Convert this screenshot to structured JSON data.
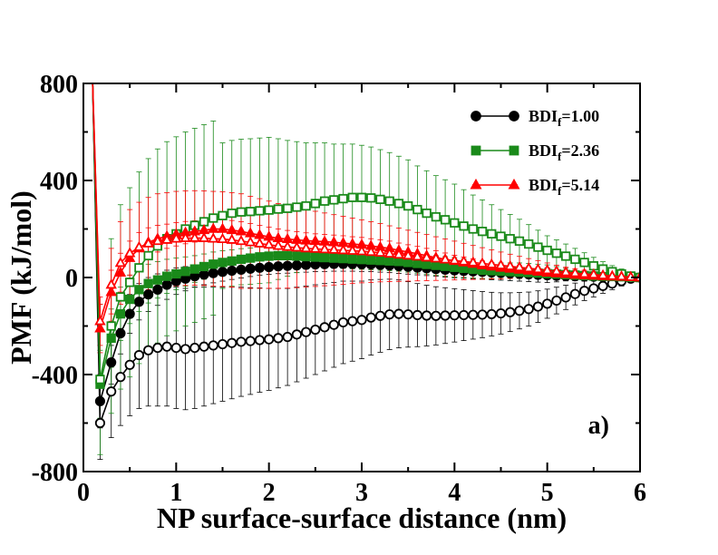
{
  "chart_data": {
    "type": "line",
    "xlabel": "NP surface-surface distance (nm)",
    "ylabel": "PMF (kJ/mol)",
    "xlim": [
      0,
      6
    ],
    "ylim": [
      -800,
      800
    ],
    "xticks": [
      "0",
      "1",
      "2",
      "3",
      "4",
      "5",
      "6"
    ],
    "yticks": [
      "-800",
      "-400",
      "0",
      "400",
      "800"
    ],
    "panel_label": "a)",
    "legend_position": "top-right",
    "legend": [
      {
        "prefix": "BDI",
        "sub": "f",
        "suffix": "=1.00",
        "color": "#000000",
        "marker": "circle"
      },
      {
        "prefix": "BDI",
        "sub": "f",
        "suffix": "=2.36",
        "color": "#1a8a1a",
        "marker": "square"
      },
      {
        "prefix": "BDI",
        "sub": "f",
        "suffix": "=5.14",
        "color": "#ff0000",
        "marker": "triangle"
      }
    ],
    "series": [
      {
        "name": "BDIf=1.00",
        "color": "#000000",
        "marker": "circle",
        "fill": "filled",
        "x": [
          0.1,
          0.18,
          0.3,
          0.4,
          0.5,
          0.6,
          0.7,
          0.8,
          0.9,
          1.0,
          1.1,
          1.2,
          1.3,
          1.4,
          1.5,
          1.6,
          1.7,
          1.8,
          1.9,
          2.0,
          2.1,
          2.2,
          2.3,
          2.4,
          2.5,
          2.6,
          2.7,
          2.8,
          2.9,
          3.0,
          3.1,
          3.2,
          3.3,
          3.4,
          3.5,
          3.6,
          3.7,
          3.8,
          3.9,
          4.0,
          4.1,
          4.2,
          4.3,
          4.4,
          4.5,
          4.6,
          4.7,
          4.8,
          4.9,
          5.0,
          5.1,
          5.2,
          5.3,
          5.4,
          5.5,
          5.6,
          5.7,
          5.8,
          5.9,
          6.0
        ],
        "y": [
          800,
          -510,
          -350,
          -230,
          -150,
          -100,
          -70,
          -50,
          -30,
          -15,
          -5,
          5,
          12,
          18,
          23,
          28,
          32,
          36,
          40,
          43,
          46,
          48,
          50,
          52,
          54,
          55,
          56,
          56,
          56,
          55,
          54,
          52,
          50,
          47,
          44,
          41,
          38,
          35,
          32,
          29,
          27,
          25,
          23,
          21,
          19,
          17,
          15,
          13,
          11,
          9,
          7,
          6,
          5,
          4,
          3,
          2,
          1,
          1,
          0,
          0
        ],
        "err": [
          0,
          110,
          90,
          85,
          80,
          75,
          70,
          65,
          60,
          55,
          50,
          45,
          42,
          40,
          38,
          36,
          34,
          32,
          30,
          30,
          30,
          30,
          30,
          30,
          30,
          30,
          30,
          30,
          30,
          30,
          30,
          30,
          30,
          30,
          30,
          30,
          30,
          30,
          30,
          30,
          30,
          30,
          30,
          30,
          30,
          30,
          30,
          30,
          30,
          30,
          25,
          20,
          18,
          15,
          12,
          10,
          8,
          6,
          4,
          0
        ]
      },
      {
        "name": "BDIf=1.00 (open)",
        "color": "#000000",
        "marker": "circle",
        "fill": "open",
        "x": [
          0.1,
          0.18,
          0.3,
          0.4,
          0.5,
          0.6,
          0.7,
          0.8,
          0.9,
          1.0,
          1.1,
          1.2,
          1.3,
          1.4,
          1.5,
          1.6,
          1.7,
          1.8,
          1.9,
          2.0,
          2.1,
          2.2,
          2.3,
          2.4,
          2.5,
          2.6,
          2.7,
          2.8,
          2.9,
          3.0,
          3.1,
          3.2,
          3.3,
          3.4,
          3.5,
          3.6,
          3.7,
          3.8,
          3.9,
          4.0,
          4.1,
          4.2,
          4.3,
          4.4,
          4.5,
          4.6,
          4.7,
          4.8,
          4.9,
          5.0,
          5.1,
          5.2,
          5.3,
          5.4,
          5.5,
          5.6,
          5.7,
          5.8,
          5.9,
          6.0
        ],
        "y": [
          800,
          -600,
          -470,
          -410,
          -360,
          -320,
          -300,
          -290,
          -285,
          -290,
          -295,
          -290,
          -285,
          -280,
          -275,
          -270,
          -265,
          -262,
          -258,
          -255,
          -250,
          -245,
          -235,
          -225,
          -215,
          -205,
          -195,
          -185,
          -180,
          -175,
          -165,
          -158,
          -152,
          -150,
          -152,
          -155,
          -157,
          -158,
          -157,
          -156,
          -155,
          -154,
          -153,
          -151,
          -148,
          -143,
          -137,
          -130,
          -120,
          -108,
          -95,
          -82,
          -68,
          -55,
          -45,
          -35,
          -25,
          -15,
          -5,
          0
        ],
        "err": [
          0,
          150,
          190,
          200,
          210,
          220,
          230,
          240,
          245,
          250,
          250,
          250,
          245,
          240,
          235,
          230,
          225,
          220,
          215,
          210,
          205,
          200,
          195,
          190,
          185,
          180,
          175,
          170,
          165,
          160,
          155,
          150,
          145,
          140,
          135,
          130,
          125,
          120,
          115,
          110,
          105,
          100,
          95,
          90,
          85,
          80,
          75,
          70,
          65,
          60,
          55,
          50,
          45,
          40,
          35,
          30,
          25,
          20,
          10,
          0
        ]
      },
      {
        "name": "BDIf=2.36",
        "color": "#1a8a1a",
        "marker": "square",
        "fill": "filled",
        "x": [
          0.1,
          0.18,
          0.3,
          0.4,
          0.5,
          0.6,
          0.7,
          0.8,
          0.9,
          1.0,
          1.1,
          1.2,
          1.3,
          1.4,
          1.5,
          1.6,
          1.7,
          1.8,
          1.9,
          2.0,
          2.1,
          2.2,
          2.3,
          2.4,
          2.5,
          2.6,
          2.7,
          2.8,
          2.9,
          3.0,
          3.1,
          3.2,
          3.3,
          3.4,
          3.5,
          3.6,
          3.7,
          3.8,
          3.9,
          4.0,
          4.1,
          4.2,
          4.3,
          4.4,
          4.5,
          4.6,
          4.7,
          4.8,
          4.9,
          5.0,
          5.1,
          5.2,
          5.3,
          5.4,
          5.5,
          5.6,
          5.7,
          5.8,
          5.9,
          6.0
        ],
        "y": [
          800,
          -440,
          -250,
          -150,
          -90,
          -50,
          -25,
          -10,
          5,
          15,
          25,
          35,
          45,
          55,
          62,
          68,
          75,
          80,
          85,
          88,
          90,
          90,
          88,
          86,
          84,
          82,
          80,
          78,
          76,
          74,
          72,
          70,
          68,
          66,
          62,
          58,
          54,
          50,
          46,
          42,
          38,
          34,
          30,
          28,
          26,
          24,
          22,
          20,
          18,
          16,
          14,
          12,
          10,
          8,
          6,
          5,
          4,
          3,
          1,
          0
        ],
        "err": [
          0,
          140,
          120,
          110,
          100,
          90,
          80,
          75,
          70,
          65,
          60,
          55,
          52,
          50,
          48,
          46,
          44,
          42,
          40,
          40,
          40,
          40,
          40,
          40,
          40,
          40,
          40,
          40,
          40,
          40,
          40,
          40,
          40,
          40,
          40,
          40,
          40,
          40,
          40,
          40,
          38,
          36,
          34,
          32,
          30,
          28,
          26,
          24,
          22,
          20,
          18,
          16,
          14,
          12,
          10,
          8,
          6,
          4,
          2,
          0
        ]
      },
      {
        "name": "BDIf=2.36 (open)",
        "color": "#1a8a1a",
        "marker": "square",
        "fill": "open",
        "x": [
          0.1,
          0.18,
          0.3,
          0.4,
          0.5,
          0.6,
          0.7,
          0.8,
          0.9,
          1.0,
          1.1,
          1.2,
          1.3,
          1.4,
          1.5,
          1.6,
          1.7,
          1.8,
          1.9,
          2.0,
          2.1,
          2.2,
          2.3,
          2.4,
          2.5,
          2.6,
          2.7,
          2.8,
          2.9,
          3.0,
          3.1,
          3.2,
          3.3,
          3.4,
          3.5,
          3.6,
          3.7,
          3.8,
          3.9,
          4.0,
          4.1,
          4.2,
          4.3,
          4.4,
          4.5,
          4.6,
          4.7,
          4.8,
          4.9,
          5.0,
          5.1,
          5.2,
          5.3,
          5.4,
          5.5,
          5.6,
          5.7,
          5.8,
          5.9,
          6.0
        ],
        "y": [
          800,
          -420,
          -200,
          -80,
          -20,
          40,
          90,
          130,
          160,
          180,
          200,
          215,
          230,
          245,
          255,
          265,
          270,
          272,
          275,
          278,
          282,
          285,
          290,
          295,
          305,
          315,
          320,
          325,
          330,
          330,
          328,
          322,
          315,
          305,
          295,
          280,
          265,
          250,
          238,
          225,
          212,
          200,
          190,
          180,
          170,
          160,
          150,
          138,
          125,
          112,
          100,
          88,
          75,
          62,
          48,
          35,
          24,
          15,
          6,
          0
        ],
        "err": [
          0,
          310,
          360,
          380,
          390,
          395,
          400,
          400,
          400,
          400,
          400,
          400,
          400,
          400,
          300,
          300,
          300,
          300,
          300,
          300,
          290,
          280,
          270,
          260,
          250,
          240,
          230,
          225,
          220,
          215,
          210,
          205,
          200,
          195,
          190,
          180,
          175,
          170,
          165,
          160,
          150,
          140,
          130,
          120,
          110,
          100,
          90,
          80,
          70,
          60,
          55,
          50,
          45,
          40,
          35,
          30,
          25,
          20,
          10,
          0
        ]
      },
      {
        "name": "BDIf=5.14",
        "color": "#ff0000",
        "marker": "triangle",
        "fill": "filled",
        "x": [
          0.1,
          0.18,
          0.3,
          0.4,
          0.5,
          0.6,
          0.7,
          0.8,
          0.9,
          1.0,
          1.1,
          1.2,
          1.3,
          1.4,
          1.5,
          1.6,
          1.7,
          1.8,
          1.9,
          2.0,
          2.1,
          2.2,
          2.3,
          2.4,
          2.5,
          2.6,
          2.7,
          2.8,
          2.9,
          3.0,
          3.1,
          3.2,
          3.3,
          3.4,
          3.5,
          3.6,
          3.7,
          3.8,
          3.9,
          4.0,
          4.1,
          4.2,
          4.3,
          4.4,
          4.5,
          4.6,
          4.7,
          4.8,
          4.9,
          5.0,
          5.1,
          5.2,
          5.3,
          5.4,
          5.5,
          5.6,
          5.7,
          5.8,
          5.9,
          6.0
        ],
        "y": [
          800,
          -210,
          -60,
          20,
          80,
          120,
          145,
          160,
          170,
          178,
          185,
          190,
          195,
          200,
          200,
          195,
          190,
          182,
          175,
          168,
          162,
          158,
          155,
          152,
          150,
          148,
          145,
          142,
          138,
          135,
          130,
          125,
          120,
          112,
          105,
          98,
          90,
          82,
          75,
          68,
          62,
          56,
          50,
          45,
          40,
          36,
          32,
          28,
          24,
          20,
          17,
          14,
          11,
          9,
          7,
          5,
          4,
          3,
          1,
          0
        ],
        "err": [
          0,
          100,
          90,
          80,
          70,
          65,
          60,
          55,
          50,
          48,
          46,
          44,
          42,
          40,
          40,
          40,
          40,
          40,
          40,
          40,
          38,
          36,
          34,
          32,
          30,
          30,
          30,
          30,
          30,
          30,
          30,
          30,
          30,
          30,
          30,
          30,
          30,
          28,
          26,
          24,
          22,
          20,
          18,
          16,
          14,
          12,
          10,
          10,
          10,
          10,
          8,
          8,
          6,
          6,
          5,
          4,
          3,
          2,
          1,
          0
        ]
      },
      {
        "name": "BDIf=5.14 (open)",
        "color": "#ff0000",
        "marker": "triangle",
        "fill": "open",
        "x": [
          0.1,
          0.18,
          0.3,
          0.4,
          0.5,
          0.6,
          0.7,
          0.8,
          0.9,
          1.0,
          1.1,
          1.2,
          1.3,
          1.4,
          1.5,
          1.6,
          1.7,
          1.8,
          1.9,
          2.0,
          2.1,
          2.2,
          2.3,
          2.4,
          2.5,
          2.6,
          2.7,
          2.8,
          2.9,
          3.0,
          3.1,
          3.2,
          3.3,
          3.4,
          3.5,
          3.6,
          3.7,
          3.8,
          3.9,
          4.0,
          4.1,
          4.2,
          4.3,
          4.4,
          4.5,
          4.6,
          4.7,
          4.8,
          4.9,
          5.0,
          5.1,
          5.2,
          5.3,
          5.4,
          5.5,
          5.6,
          5.7,
          5.8,
          5.9,
          6.0
        ],
        "y": [
          800,
          -180,
          -30,
          60,
          100,
          125,
          140,
          150,
          155,
          160,
          162,
          163,
          162,
          160,
          158,
          155,
          150,
          145,
          140,
          135,
          130,
          126,
          123,
          120,
          118,
          116,
          114,
          112,
          110,
          108,
          105,
          102,
          98,
          94,
          90,
          86,
          82,
          78,
          74,
          70,
          66,
          62,
          58,
          54,
          50,
          46,
          42,
          38,
          34,
          30,
          26,
          22,
          18,
          15,
          12,
          9,
          6,
          4,
          2,
          0
        ],
        "err": [
          0,
          100,
          150,
          170,
          180,
          185,
          190,
          195,
          195,
          195,
          195,
          195,
          195,
          195,
          195,
          195,
          195,
          190,
          185,
          180,
          175,
          170,
          165,
          160,
          155,
          150,
          145,
          140,
          135,
          130,
          125,
          120,
          115,
          110,
          105,
          100,
          95,
          90,
          85,
          80,
          75,
          70,
          65,
          60,
          55,
          50,
          45,
          40,
          35,
          30,
          25,
          20,
          18,
          15,
          12,
          10,
          8,
          6,
          3,
          0
        ]
      }
    ]
  }
}
